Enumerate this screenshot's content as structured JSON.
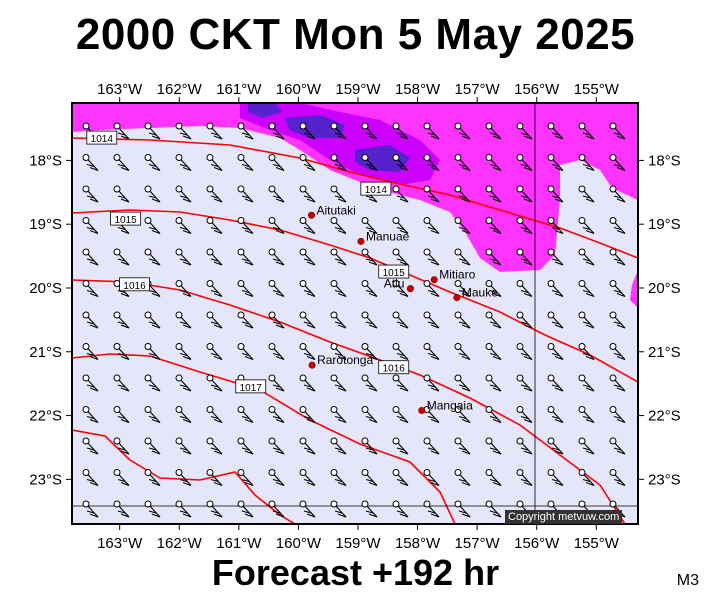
{
  "title": "2000 CKT Mon 5 May 2025",
  "footer": "Forecast +192 hr",
  "model": "M3",
  "copyright": "Copyright metvuw.com",
  "map": {
    "lon_range": [
      -163.8,
      -154.3
    ],
    "lat_range": [
      -23.7,
      -17.1
    ],
    "lon_ticks": [
      "163°W",
      "162°W",
      "161°W",
      "160°W",
      "159°W",
      "158°W",
      "157°W",
      "156°W",
      "155°W"
    ],
    "lon_tick_values": [
      -163,
      -162,
      -161,
      -160,
      -159,
      -158,
      -157,
      -156,
      -155
    ],
    "lat_ticks": [
      "18°S",
      "19°S",
      "20°S",
      "21°S",
      "22°S",
      "23°S"
    ],
    "lat_tick_values": [
      -18,
      -19,
      -20,
      -21,
      -22,
      -23
    ],
    "colors": {
      "background": "#e6e6fa",
      "precip_light": "#ff33ff",
      "precip_mid": "#cc00ff",
      "precip_heavy": "#5522cc",
      "isobar": "#ff0000",
      "frame": "#000000"
    },
    "places": [
      {
        "name": "Aitutaki",
        "lon": -159.78,
        "lat": -18.86
      },
      {
        "name": "Manuae",
        "lon": -158.95,
        "lat": -19.27
      },
      {
        "name": "Mitiaro",
        "lon": -157.72,
        "lat": -19.87
      },
      {
        "name": "Atiu",
        "lon": -158.12,
        "lat": -20.01
      },
      {
        "name": "Mauke",
        "lon": -157.34,
        "lat": -20.15
      },
      {
        "name": "Rarotonga",
        "lon": -159.77,
        "lat": -21.21
      },
      {
        "name": "Mangaia",
        "lon": -157.93,
        "lat": -21.92
      }
    ],
    "isobar_labels": [
      {
        "text": "1014",
        "lon": -163.3,
        "lat": -17.65
      },
      {
        "text": "1014",
        "lon": -158.7,
        "lat": -18.45
      },
      {
        "text": "1015",
        "lon": -162.9,
        "lat": -18.92
      },
      {
        "text": "1015",
        "lon": -158.4,
        "lat": -19.75
      },
      {
        "text": "1016",
        "lon": -162.75,
        "lat": -19.95
      },
      {
        "text": "1016",
        "lon": -158.4,
        "lat": -21.25
      },
      {
        "text": "1017",
        "lon": -160.8,
        "lat": -21.55
      }
    ]
  }
}
